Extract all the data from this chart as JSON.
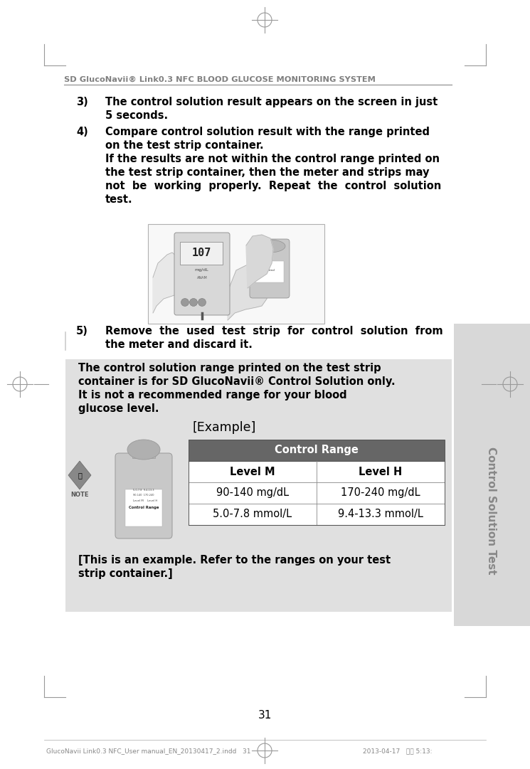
{
  "page_bg": "#ffffff",
  "header_text": "SD GlucoNavii® Link0.3 NFC BLOOD GLUCOSE MONITORING SYSTEM",
  "header_color": "#808080",
  "body_text_color": "#000000",
  "item3_label": "3)",
  "item3_text1": "The control solution result appears on the screen in just",
  "item3_text2": "5 seconds.",
  "item4_label": "4)",
  "item4_text1": "Compare control solution result with the range printed",
  "item4_text2": "on the test strip container.",
  "item4_text3": "If the results are not within the control range printed on",
  "item4_text4": "the test strip container, then the meter and strips may",
  "item4_text5": "not  be  working  properly.  Repeat  the  control  solution",
  "item4_text6": "test.",
  "item5_label": "5)",
  "item5_text1": "Remove  the  used  test  strip  for  control  solution  from",
  "item5_text2": "the meter and discard it.",
  "note_bg": "#e0e0e0",
  "note_text1": "The control solution range printed on the test strip",
  "note_text2": "container is for SD GlucoNavii® Control Solution only.",
  "note_text3": "It is not a recommended range for your blood",
  "note_text4": "glucose level.",
  "example_label": "[Example]",
  "table_header_bg": "#666666",
  "table_header_text": "Control Range",
  "table_header_color": "#ffffff",
  "table_col1_header": "Level M",
  "table_col2_header": "Level H",
  "table_row1_col1": "90-140 mg/dL",
  "table_row1_col2": "170-240 mg/dL",
  "table_row2_col1": "5.0-7.8 mmol/L",
  "table_row2_col2": "9.4-13.3 mmol/L",
  "footer_note1": "[This is an example. Refer to the ranges on your test",
  "footer_note2": "strip container.]",
  "side_tab_text": "Control Solution Test",
  "side_tab_bg": "#d8d8d8",
  "side_tab_text_color": "#888888",
  "page_number": "31",
  "bottom_left_text": "GlucoNavii Link0.3 NFC_User manual_EN_20130417_2.indd   31",
  "bottom_right_text": "2013-04-17   오후 5:13:"
}
